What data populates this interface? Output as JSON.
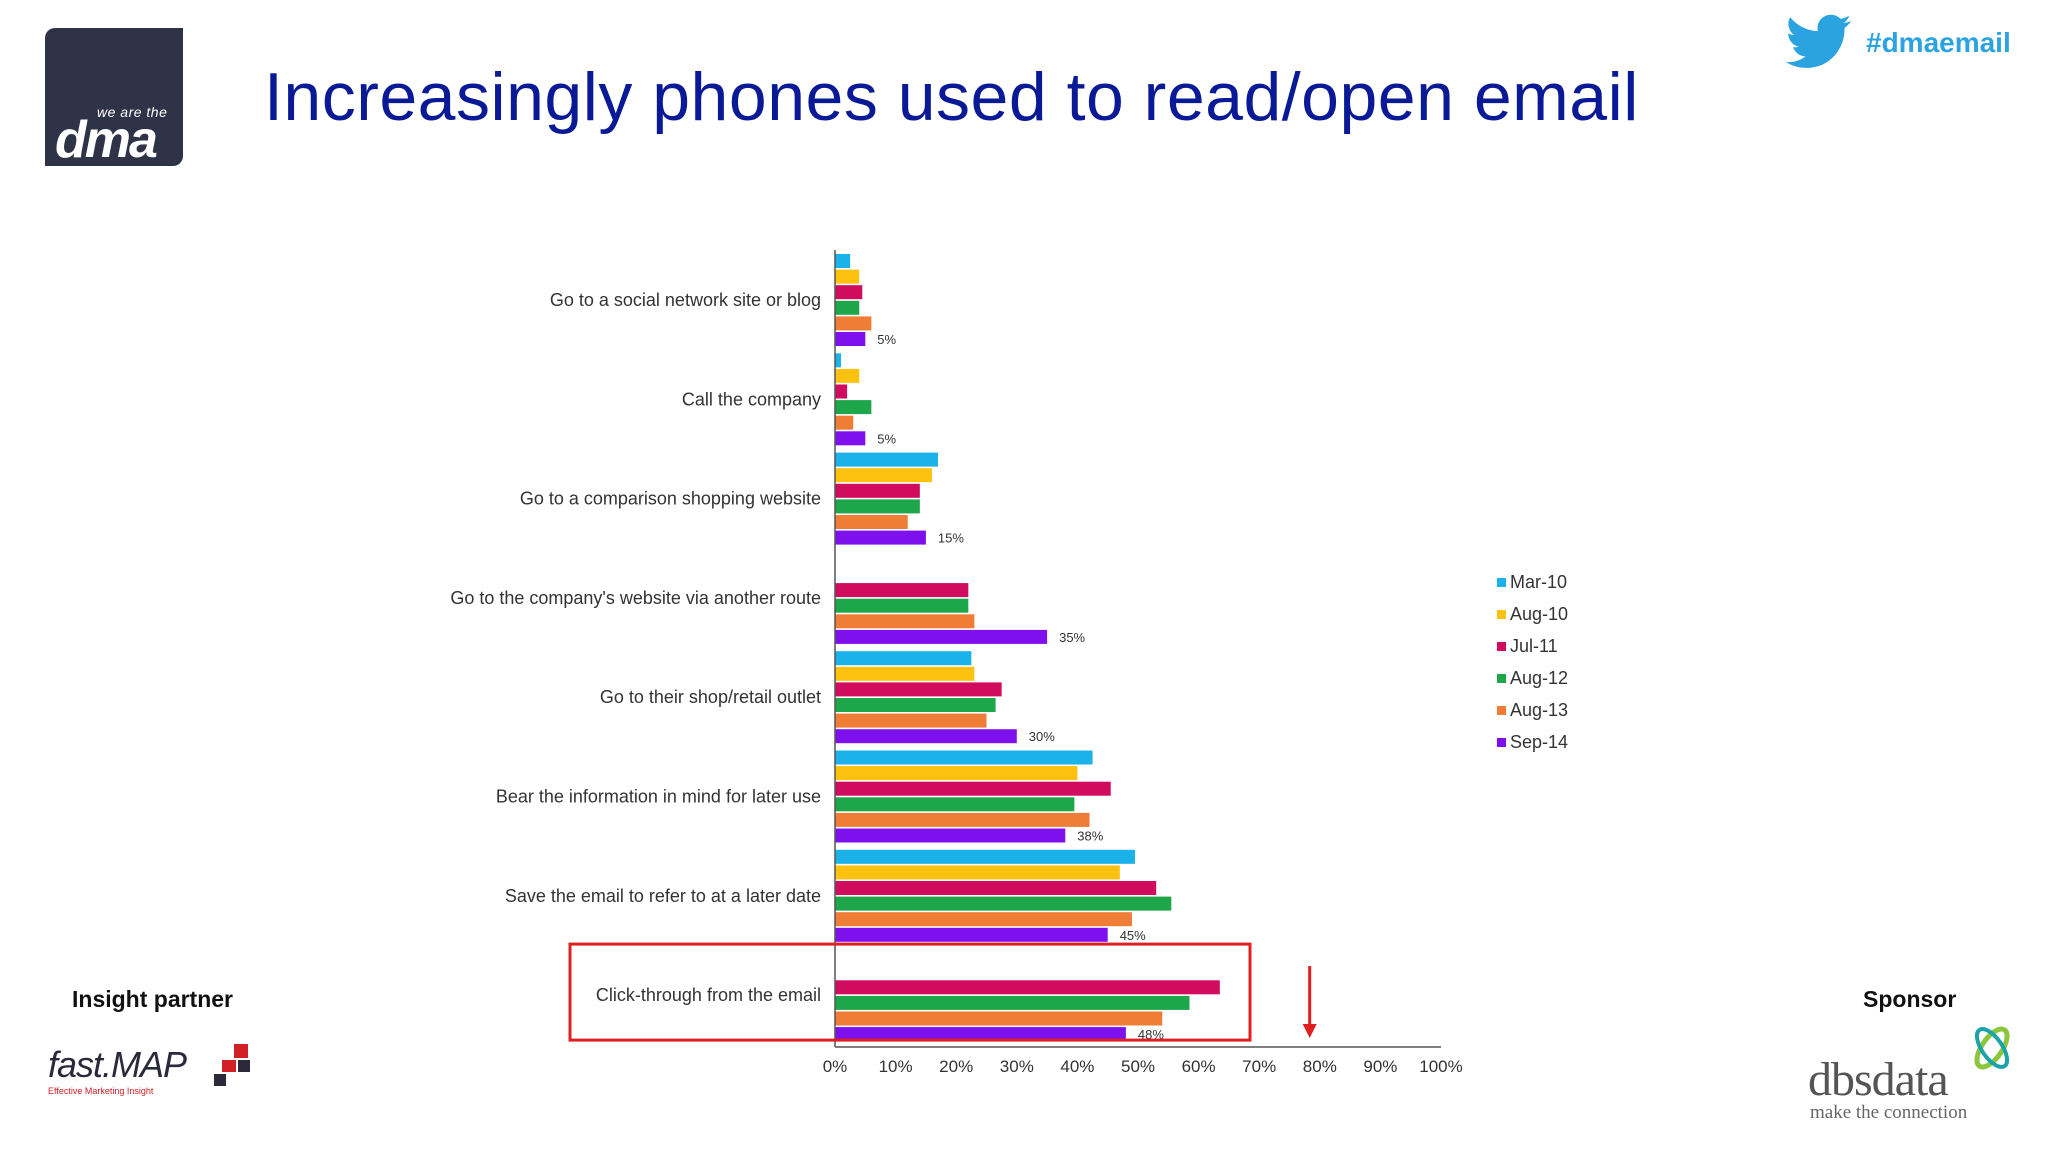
{
  "header": {
    "logo_small": "we are the",
    "logo_big": "dma",
    "title": "Increasingly phones used to read/open email",
    "hashtag": "#dmaemail"
  },
  "footer": {
    "insight_label": "Insight partner",
    "insight_logo_text": "fast.MAP",
    "insight_logo_sub": "Effective Marketing Insight",
    "sponsor_label": "Sponsor",
    "sponsor_logo_text": "dbsdata",
    "sponsor_logo_sub": "make the connection"
  },
  "chart_data": {
    "type": "bar",
    "orientation": "horizontal",
    "categories": [
      "Go to a social network site or blog",
      "Call the company",
      "Go to a comparison shopping website",
      "Go to the company's website via another route",
      "Go to their shop/retail outlet",
      "Bear the information in mind for later use",
      "Save the email to refer to at a later date",
      "Click-through from the email"
    ],
    "series": [
      {
        "name": "Mar-10",
        "color": "#1ab2e8",
        "values": [
          2.5,
          1,
          17,
          null,
          22.5,
          42.5,
          49.5,
          null
        ]
      },
      {
        "name": "Aug-10",
        "color": "#fdc20f",
        "values": [
          4,
          4,
          16,
          null,
          23,
          40,
          47,
          null
        ]
      },
      {
        "name": "Jul-11",
        "color": "#d10b5e",
        "values": [
          4.5,
          2,
          14,
          22,
          27.5,
          45.5,
          53,
          63.5
        ]
      },
      {
        "name": "Aug-12",
        "color": "#1ea64a",
        "values": [
          4,
          6,
          14,
          22,
          26.5,
          39.5,
          55.5,
          58.5
        ]
      },
      {
        "name": "Aug-13",
        "color": "#ef7d35",
        "values": [
          6,
          3,
          12,
          23,
          25,
          42,
          49,
          54
        ]
      },
      {
        "name": "Sep-14",
        "color": "#7f10ee",
        "values": [
          5,
          5,
          15,
          35,
          30,
          38,
          45,
          48
        ]
      }
    ],
    "data_labels": [
      "5%",
      "5%",
      "15%",
      "35%",
      "30%",
      "38%",
      "45%",
      "48%"
    ],
    "x_ticks": [
      "0%",
      "10%",
      "20%",
      "30%",
      "40%",
      "50%",
      "60%",
      "70%",
      "80%",
      "90%",
      "100%"
    ],
    "xlim": [
      0,
      100
    ],
    "legend_position": "right",
    "highlighted_category": "Click-through from the email",
    "highlight_color": "#e02020",
    "arrow_at_value": 78
  }
}
